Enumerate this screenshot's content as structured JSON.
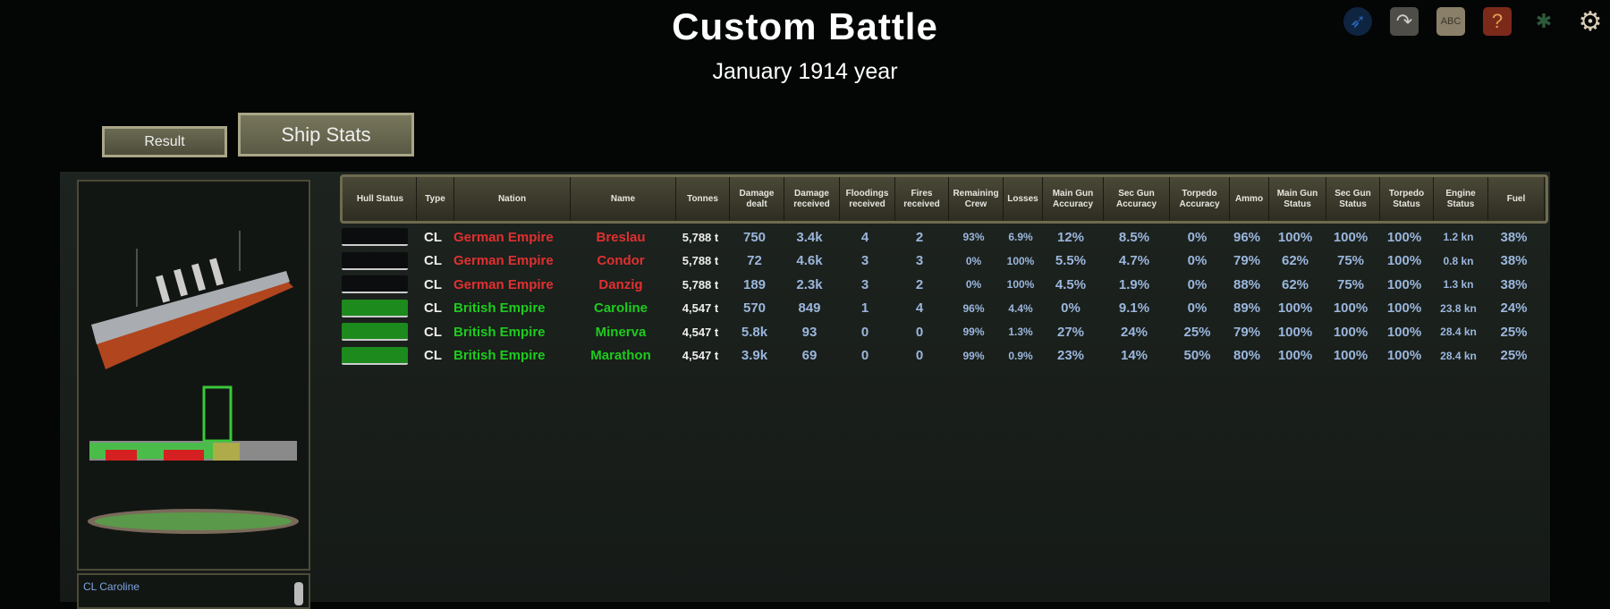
{
  "header": {
    "title": "Custom Battle",
    "subtitle": "January 1914 year"
  },
  "tabs": [
    {
      "label": "Result",
      "active": false
    },
    {
      "label": "Ship Stats",
      "active": true
    }
  ],
  "top_icons": [
    "compass-icon",
    "arrow-icon",
    "abc-blocks-icon",
    "help-book-icon",
    "bug-icon",
    "gear-icon"
  ],
  "colors": {
    "german": "#e03030",
    "british": "#1ecb1e",
    "value": "#9bb6dc"
  },
  "table": {
    "columns": [
      "Hull Status",
      "Type",
      "Nation",
      "Name",
      "Tonnes",
      "Damage dealt",
      "Damage received",
      "Floodings received",
      "Fires received",
      "Remaining Crew",
      "Losses",
      "Main Gun Accuracy",
      "Sec Gun Accuracy",
      "Torpedo Accuracy",
      "Ammo",
      "Main Gun Status",
      "Sec Gun Status",
      "Torpedo Status",
      "Engine Status",
      "Fuel"
    ],
    "rows": [
      {
        "side": "enemy",
        "type": "CL",
        "nation": "German Empire",
        "name": "Breslau",
        "tonnes": "5,788 t",
        "dmg_dealt": "750",
        "dmg_recv": "3.4k",
        "flood": "4",
        "fires": "2",
        "crew": "93%",
        "losses": "6.9%",
        "mg_acc": "12%",
        "sg_acc": "8.5%",
        "tp_acc": "0%",
        "ammo": "96%",
        "mg_st": "100%",
        "sg_st": "100%",
        "tp_st": "100%",
        "engine": "1.2 kn",
        "fuel": "38%"
      },
      {
        "side": "enemy",
        "type": "CL",
        "nation": "German Empire",
        "name": "Condor",
        "tonnes": "5,788 t",
        "dmg_dealt": "72",
        "dmg_recv": "4.6k",
        "flood": "3",
        "fires": "3",
        "crew": "0%",
        "losses": "100%",
        "mg_acc": "5.5%",
        "sg_acc": "4.7%",
        "tp_acc": "0%",
        "ammo": "79%",
        "mg_st": "62%",
        "sg_st": "75%",
        "tp_st": "100%",
        "engine": "0.8 kn",
        "fuel": "38%"
      },
      {
        "side": "enemy",
        "type": "CL",
        "nation": "German Empire",
        "name": "Danzig",
        "tonnes": "5,788 t",
        "dmg_dealt": "189",
        "dmg_recv": "2.3k",
        "flood": "3",
        "fires": "2",
        "crew": "0%",
        "losses": "100%",
        "mg_acc": "4.5%",
        "sg_acc": "1.9%",
        "tp_acc": "0%",
        "ammo": "88%",
        "mg_st": "62%",
        "sg_st": "75%",
        "tp_st": "100%",
        "engine": "1.3 kn",
        "fuel": "38%"
      },
      {
        "side": "own",
        "type": "CL",
        "nation": "British Empire",
        "name": "Caroline",
        "tonnes": "4,547 t",
        "dmg_dealt": "570",
        "dmg_recv": "849",
        "flood": "1",
        "fires": "4",
        "crew": "96%",
        "losses": "4.4%",
        "mg_acc": "0%",
        "sg_acc": "9.1%",
        "tp_acc": "0%",
        "ammo": "89%",
        "mg_st": "100%",
        "sg_st": "100%",
        "tp_st": "100%",
        "engine": "23.8 kn",
        "fuel": "24%"
      },
      {
        "side": "own",
        "type": "CL",
        "nation": "British Empire",
        "name": "Minerva",
        "tonnes": "4,547 t",
        "dmg_dealt": "5.8k",
        "dmg_recv": "93",
        "flood": "0",
        "fires": "0",
        "crew": "99%",
        "losses": "1.3%",
        "mg_acc": "27%",
        "sg_acc": "24%",
        "tp_acc": "25%",
        "ammo": "79%",
        "mg_st": "100%",
        "sg_st": "100%",
        "tp_st": "100%",
        "engine": "28.4 kn",
        "fuel": "25%"
      },
      {
        "side": "own",
        "type": "CL",
        "nation": "British Empire",
        "name": "Marathon",
        "tonnes": "4,547 t",
        "dmg_dealt": "3.9k",
        "dmg_recv": "69",
        "flood": "0",
        "fires": "0",
        "crew": "99%",
        "losses": "0.9%",
        "mg_acc": "23%",
        "sg_acc": "14%",
        "tp_acc": "50%",
        "ammo": "80%",
        "mg_st": "100%",
        "sg_st": "100%",
        "tp_st": "100%",
        "engine": "28.4 kn",
        "fuel": "25%"
      }
    ]
  },
  "selected_ship": {
    "label": "CL Caroline"
  }
}
